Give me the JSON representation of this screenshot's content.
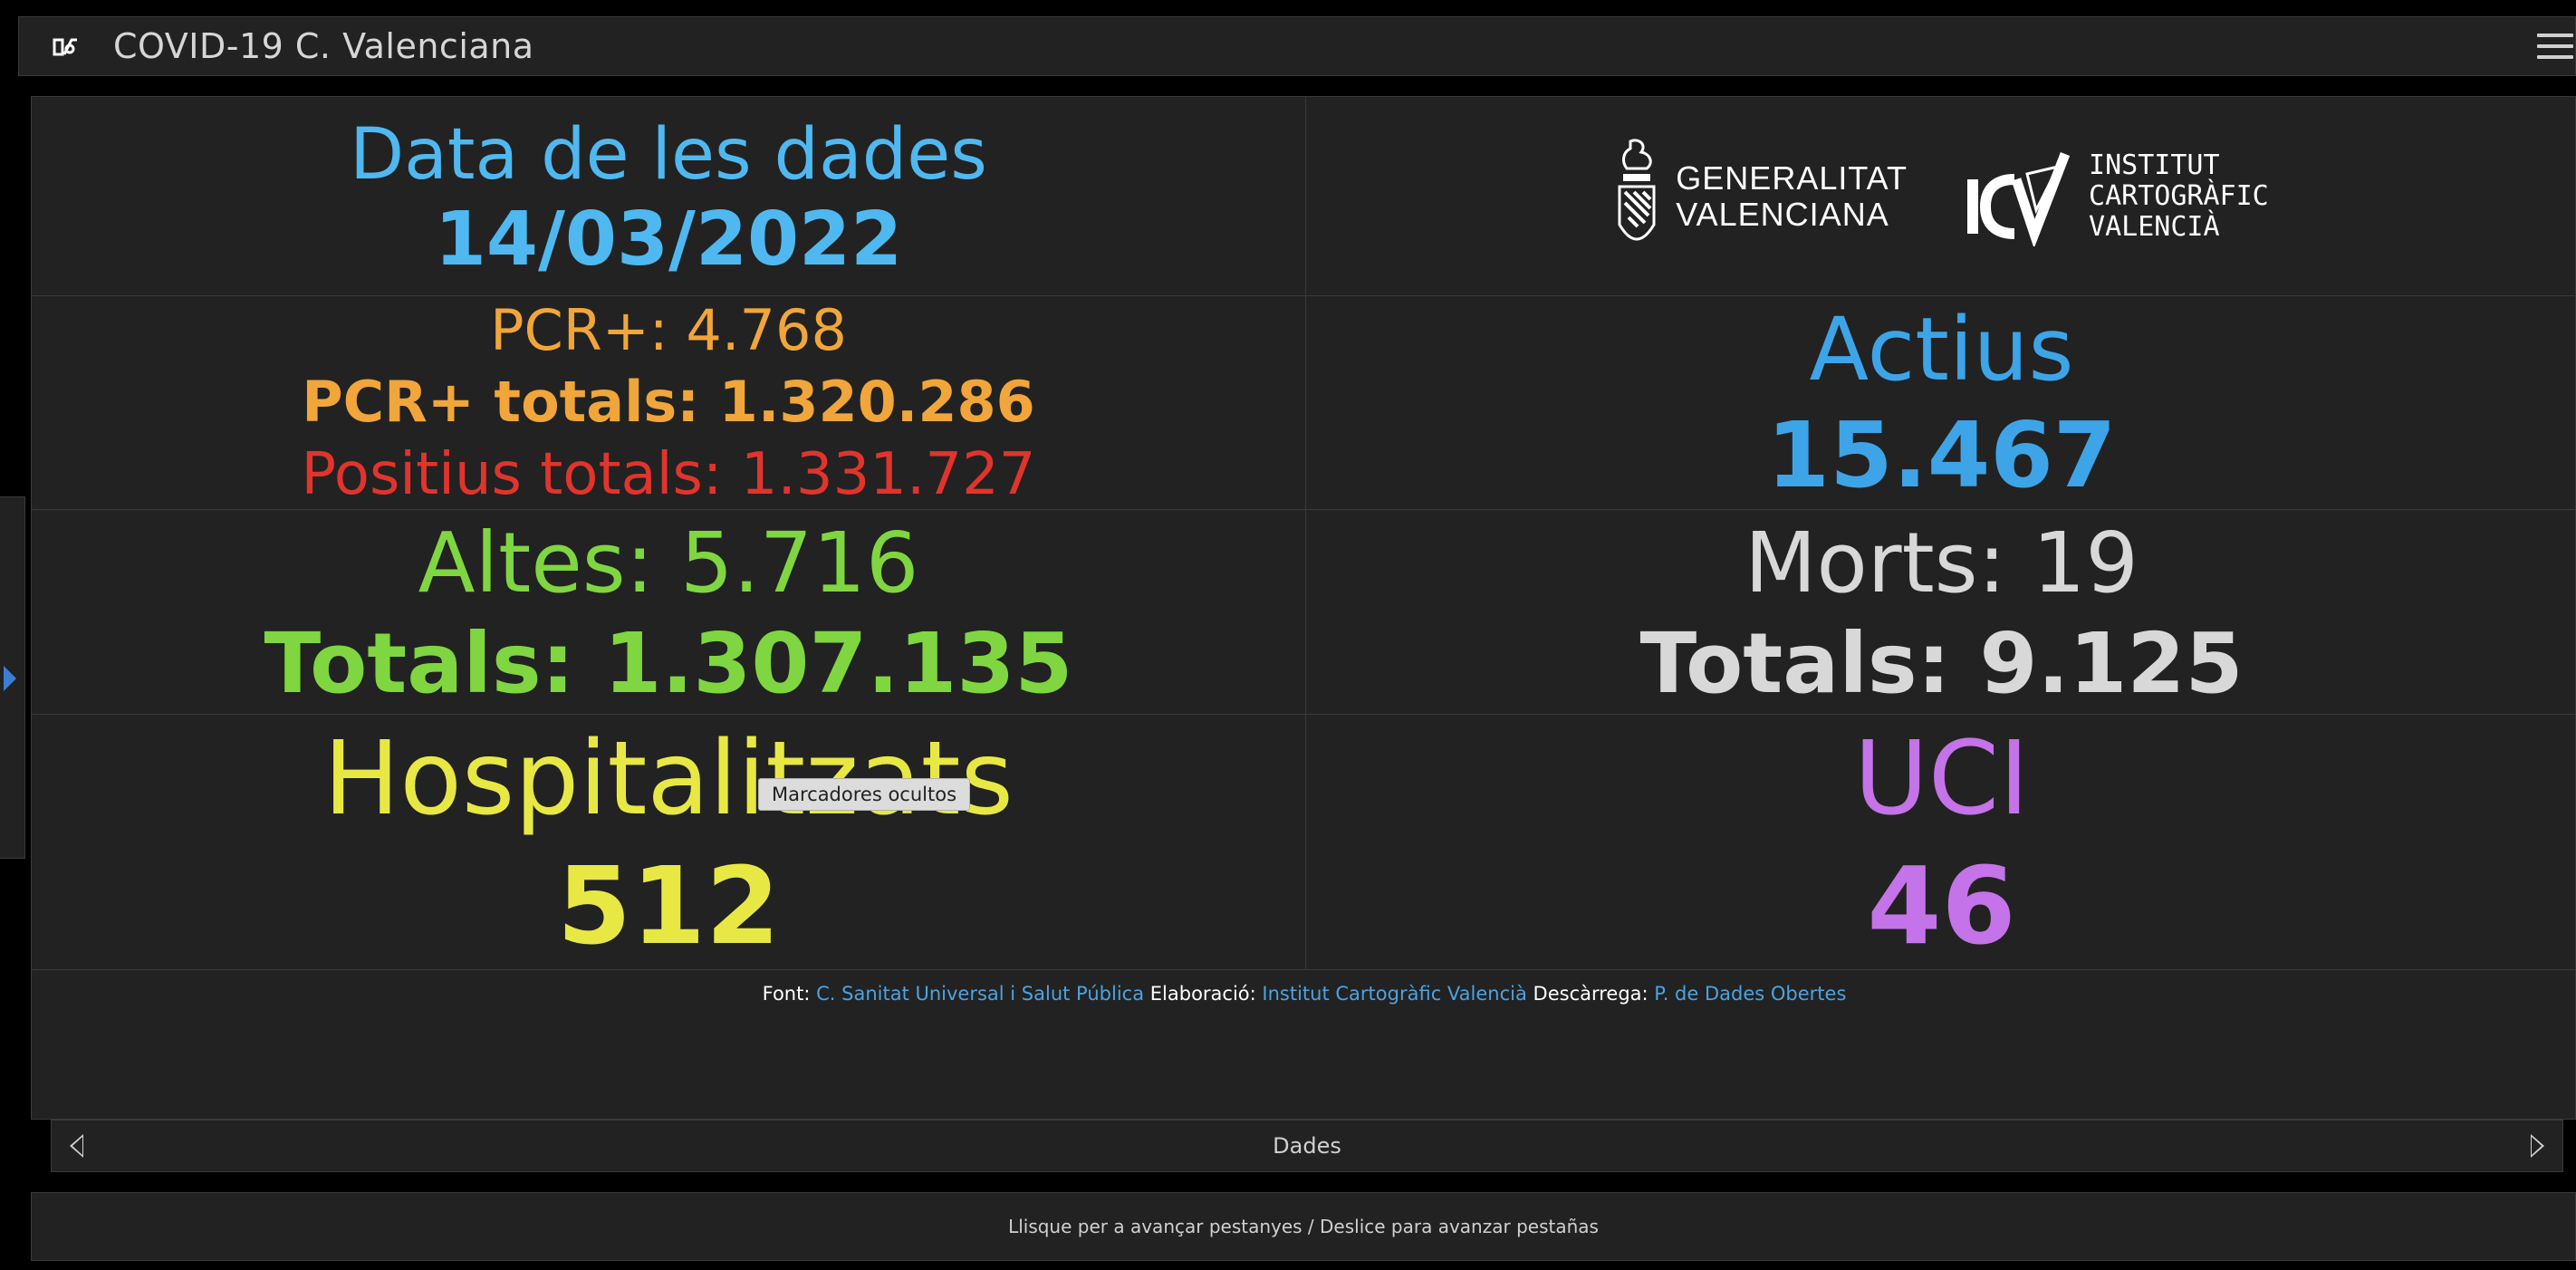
{
  "header": {
    "title": "COVID-19 C. Valenciana",
    "logo_icon": "gva-cov-icon",
    "menu_icon": "hamburger-menu-icon"
  },
  "date_block": {
    "title": "Data de les dades",
    "value": "14/03/2022"
  },
  "logos": {
    "gva_line1": "GENERALITAT",
    "gva_line2": "VALENCIANA",
    "icv_line1": "INSTITUT",
    "icv_line2": "CARTOGRÀFIC",
    "icv_line3": "VALENCIÀ"
  },
  "pcr": {
    "daily": "PCR+: 4.768",
    "totals": "PCR+ totals: 1.320.286",
    "positius_totals": "Positius totals: 1.331.727"
  },
  "actius": {
    "label": "Actius",
    "value": "15.467"
  },
  "altes": {
    "daily": "Altes: 5.716",
    "totals": "Totals: 1.307.135"
  },
  "morts": {
    "daily": "Morts: 19",
    "totals": "Totals: 9.125"
  },
  "hospitalitzats": {
    "label": "Hospitalitzats",
    "value": "512"
  },
  "uci": {
    "label": "UCI",
    "value": "46"
  },
  "tooltip": "Marcadores ocultos",
  "credits": {
    "font_label": "Font:",
    "font_link": "C. Sanitat Universal i Salut Pública",
    "elaboracio_label": "Elaboració:",
    "elaboracio_link": "Institut Cartogràfic Valencià",
    "descarrega_label": "Descàrrega:",
    "descarrega_link": "P. de Dades Obertes"
  },
  "tabs": {
    "current": "Dades"
  },
  "hint": "Llisque per a avançar pestanyes / Deslice para avanzar pestañas",
  "colors": {
    "date": "#4fb8f0",
    "pcr": "#f0a63a",
    "positius": "#e0342c",
    "altes": "#7fd640",
    "morts": "#d8d8d8",
    "actius": "#3da4e8",
    "hospitalitzats": "#e8e845",
    "uci": "#c473e8"
  }
}
